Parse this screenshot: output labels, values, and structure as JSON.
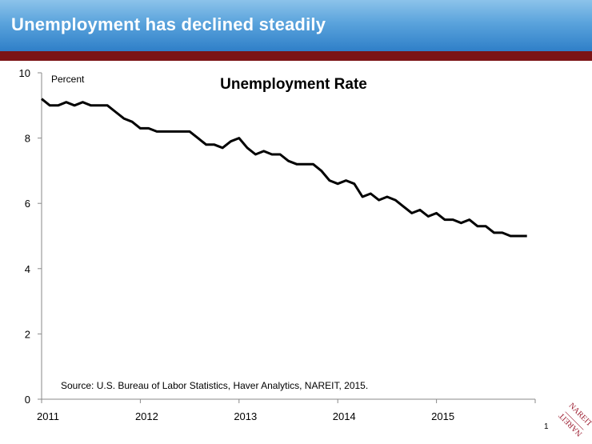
{
  "header": {
    "title": "Unemployment has declined steadily"
  },
  "footer": {
    "page_number": "1",
    "logo_text": "NAREIT"
  },
  "colors": {
    "header_bar": "#7b1416",
    "line": "#000000",
    "logo": "#9b1b2e"
  },
  "chart_data": {
    "type": "line",
    "title": "Unemployment Rate",
    "ylabel": "Percent",
    "xlabel": "",
    "source": "Source: U.S. Bureau of Labor Statistics, Haver Analytics, NAREIT, 2015.",
    "ylim": [
      0,
      10
    ],
    "yticks": [
      "0",
      "2",
      "4",
      "6",
      "8",
      "10"
    ],
    "xlim": [
      "2011-01",
      "2016-01"
    ],
    "xticks": [
      "2011",
      "2012",
      "2013",
      "2014",
      "2015"
    ],
    "grid": false,
    "series": [
      {
        "x": [
          "2011-01",
          "2011-02",
          "2011-03",
          "2011-04",
          "2011-05",
          "2011-06",
          "2011-07",
          "2011-08",
          "2011-09",
          "2011-10",
          "2011-11",
          "2011-12",
          "2012-01",
          "2012-02",
          "2012-03",
          "2012-04",
          "2012-05",
          "2012-06",
          "2012-07",
          "2012-08",
          "2012-09",
          "2012-10",
          "2012-11",
          "2012-12",
          "2013-01",
          "2013-02",
          "2013-03",
          "2013-04",
          "2013-05",
          "2013-06",
          "2013-07",
          "2013-08",
          "2013-09",
          "2013-10",
          "2013-11",
          "2013-12",
          "2014-01",
          "2014-02",
          "2014-03",
          "2014-04",
          "2014-05",
          "2014-06",
          "2014-07",
          "2014-08",
          "2014-09",
          "2014-10",
          "2014-11",
          "2014-12",
          "2015-01",
          "2015-02",
          "2015-03",
          "2015-04",
          "2015-05",
          "2015-06",
          "2015-07",
          "2015-08",
          "2015-09",
          "2015-10",
          "2015-11",
          "2015-12"
        ],
        "values": [
          9.2,
          9.0,
          9.0,
          9.1,
          9.0,
          9.1,
          9.0,
          9.0,
          9.0,
          8.8,
          8.6,
          8.5,
          8.3,
          8.3,
          8.2,
          8.2,
          8.2,
          8.2,
          8.2,
          8.0,
          7.8,
          7.8,
          7.7,
          7.9,
          8.0,
          7.7,
          7.5,
          7.6,
          7.5,
          7.5,
          7.3,
          7.2,
          7.2,
          7.2,
          7.0,
          6.7,
          6.6,
          6.7,
          6.6,
          6.2,
          6.3,
          6.1,
          6.2,
          6.1,
          5.9,
          5.7,
          5.8,
          5.6,
          5.7,
          5.5,
          5.5,
          5.4,
          5.5,
          5.3,
          5.3,
          5.1,
          5.1,
          5.0,
          5.0,
          5.0
        ]
      }
    ]
  }
}
